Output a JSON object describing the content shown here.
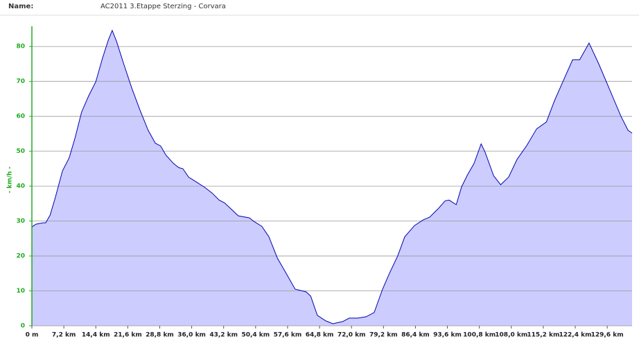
{
  "header": {
    "label": "Name:",
    "value": "AC2011 3.Etappe Sterzing - Corvara"
  },
  "chart_data": {
    "type": "area",
    "y_label": "- km/h -",
    "color": "#0000b0",
    "fill": "#ccccff",
    "grid": true,
    "xlim": [
      0,
      135.2
    ],
    "ylim": [
      0,
      85
    ],
    "xticks": [
      {
        "value": 0,
        "label": "0 m"
      },
      {
        "value": 7.2,
        "label": "7,2 km"
      },
      {
        "value": 14.4,
        "label": "14,4 km"
      },
      {
        "value": 21.6,
        "label": "21,6 km"
      },
      {
        "value": 28.8,
        "label": "28,8 km"
      },
      {
        "value": 36.0,
        "label": "36,0 km"
      },
      {
        "value": 43.2,
        "label": "43,2 km"
      },
      {
        "value": 50.4,
        "label": "50,4 km"
      },
      {
        "value": 57.6,
        "label": "57,6 km"
      },
      {
        "value": 64.8,
        "label": "64,8 km"
      },
      {
        "value": 72.0,
        "label": "72,0 km"
      },
      {
        "value": 79.2,
        "label": "79,2 km"
      },
      {
        "value": 86.4,
        "label": "86,4 km"
      },
      {
        "value": 93.6,
        "label": "93,6 km"
      },
      {
        "value": 100.8,
        "label": "100,8 km"
      },
      {
        "value": 108.0,
        "label": "108,0 km"
      },
      {
        "value": 115.2,
        "label": "115,2 km"
      },
      {
        "value": 122.4,
        "label": "122,4 km"
      },
      {
        "value": 129.6,
        "label": "129,6 km"
      }
    ],
    "yticks": [
      0,
      10,
      20,
      30,
      40,
      50,
      60,
      70,
      80
    ],
    "x": [
      0,
      0.9,
      2.5,
      3.1,
      4.1,
      5.3,
      6.9,
      8.4,
      9.7,
      11.2,
      12.8,
      14.4,
      15.9,
      17.2,
      18.1,
      19.1,
      20.6,
      22.5,
      24.4,
      26.2,
      27.8,
      29.0,
      30.2,
      31.9,
      33.1,
      34.0,
      35.3,
      36.8,
      39.0,
      40.6,
      42.2,
      43.4,
      45.0,
      46.5,
      49.0,
      50.0,
      51.8,
      53.4,
      55.3,
      57.2,
      59.3,
      61.8,
      62.8,
      64.3,
      66.2,
      67.8,
      70.0,
      71.5,
      73.4,
      75.3,
      77.1,
      79.0,
      80.6,
      82.4,
      84.0,
      86.2,
      88.1,
      89.6,
      91.5,
      93.1,
      94.0,
      95.6,
      96.8,
      98.1,
      99.6,
      101.2,
      102.1,
      104.0,
      105.6,
      107.4,
      109.3,
      111.5,
      113.7,
      115.9,
      117.7,
      119.6,
      121.8,
      123.4,
      125.5,
      127.7,
      130.2,
      132.7,
      134.3,
      135.2
    ],
    "values": [
      28.3,
      29.1,
      29.5,
      29.5,
      31.7,
      36.8,
      44.4,
      48.1,
      53.7,
      61.2,
      65.9,
      69.9,
      76.6,
      81.8,
      84.6,
      81.4,
      75.4,
      68.1,
      61.6,
      56.0,
      52.3,
      51.5,
      48.9,
      46.5,
      45.3,
      45.0,
      42.6,
      41.4,
      39.6,
      38.0,
      36.0,
      35.2,
      33.3,
      31.5,
      30.9,
      29.9,
      28.5,
      25.5,
      19.4,
      15.2,
      10.5,
      9.7,
      8.5,
      3.0,
      1.4,
      0.6,
      1.2,
      2.2,
      2.2,
      2.6,
      3.8,
      10.5,
      15.2,
      20.0,
      25.5,
      28.7,
      30.3,
      31.1,
      33.5,
      35.8,
      36.0,
      34.7,
      39.8,
      43.2,
      46.5,
      52.1,
      49.7,
      43.0,
      40.4,
      42.6,
      47.7,
      51.7,
      56.4,
      58.4,
      64.4,
      69.9,
      76.2,
      76.2,
      81.0,
      75.0,
      67.5,
      60.0,
      56.0,
      55.2
    ]
  }
}
